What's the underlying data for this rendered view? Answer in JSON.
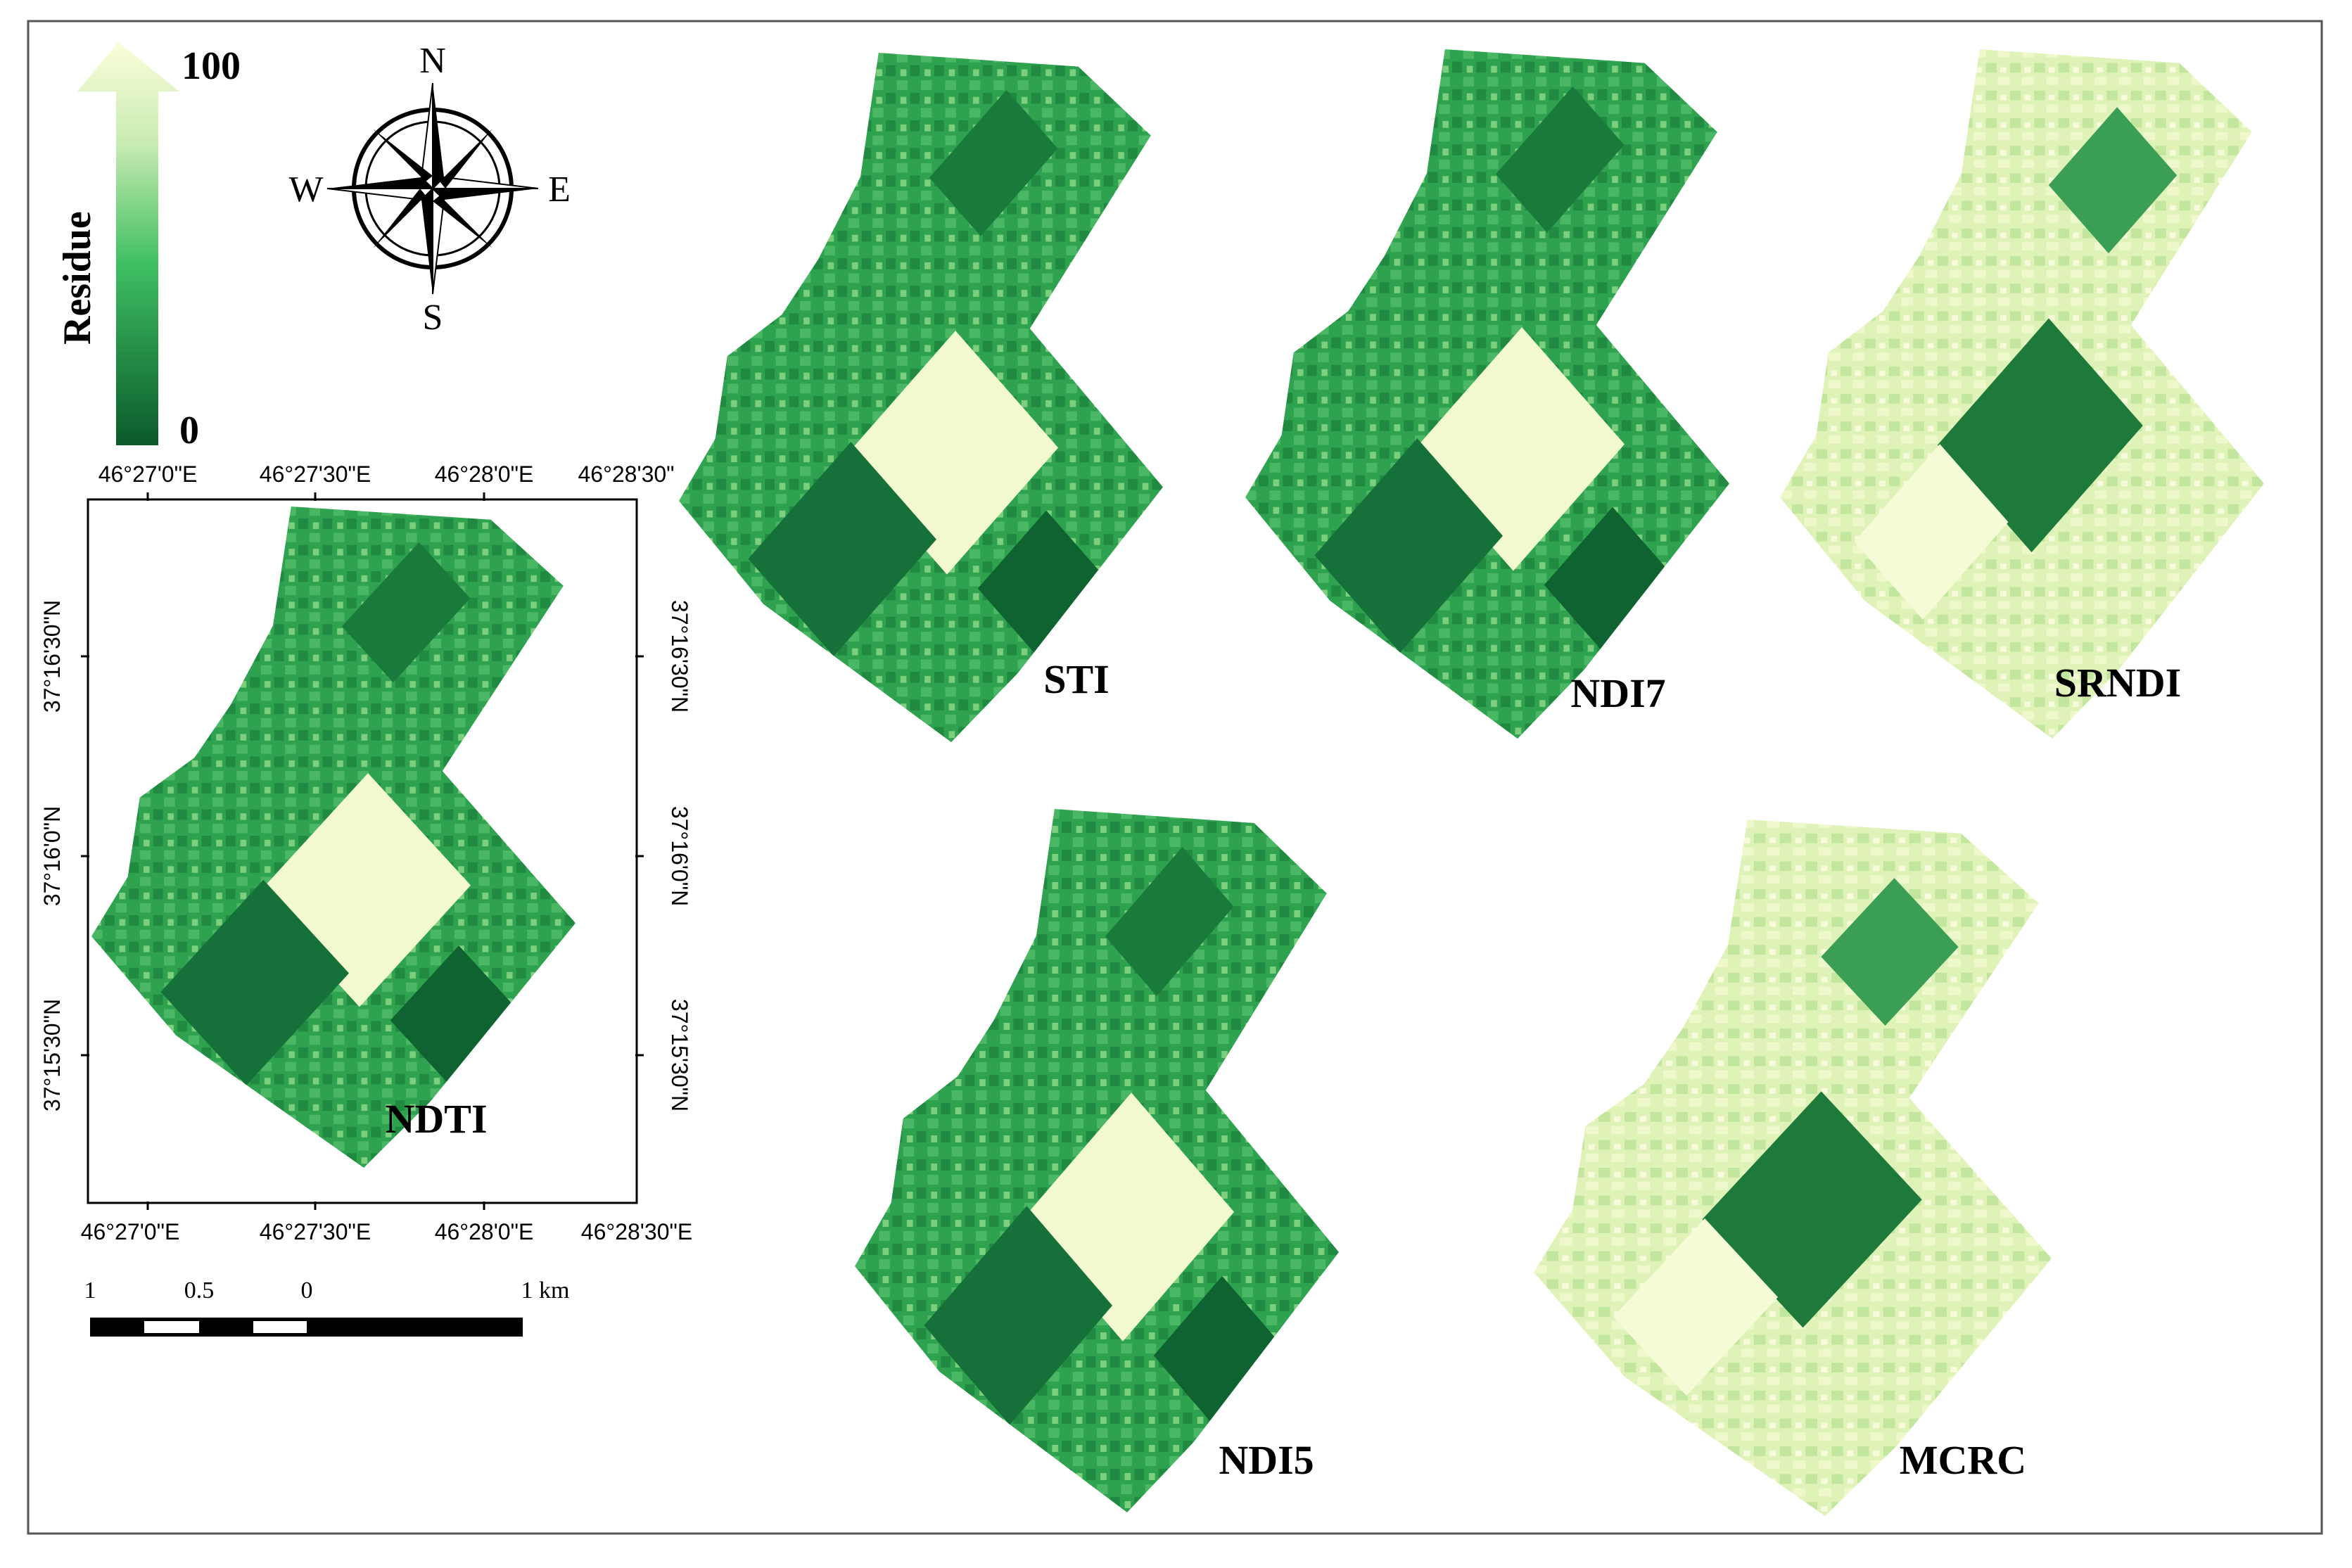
{
  "legend": {
    "title": "Residue",
    "max_label": "100",
    "min_label": "0",
    "colors": {
      "high": "#fbfdda",
      "mid": "#3fbf63",
      "low": "#0a5a2a"
    }
  },
  "compass": {
    "north": "N",
    "south": "S",
    "east": "E",
    "west": "W"
  },
  "graticule": {
    "top_labels": [
      "46°27'0\"E",
      "46°27'30\"E",
      "46°28'0\"E",
      "46°28'30\""
    ],
    "bottom_labels": [
      "46°27'0\"E",
      "46°27'30\"E",
      "46°28'0\"E",
      "46°28'30\"E"
    ],
    "left_labels": [
      "37°16'30\"N",
      "37°16'0\"N",
      "37°15'30\"N"
    ],
    "right_labels": [
      "37°16'30\"N",
      "37°16'0\"N",
      "37°15'30\"N"
    ]
  },
  "scale_bar": {
    "labels": [
      "1",
      "0.5",
      "0",
      "1 km"
    ]
  },
  "maps": [
    {
      "label": "NDTI",
      "tone": "green"
    },
    {
      "label": "STI",
      "tone": "green"
    },
    {
      "label": "NDI7",
      "tone": "green"
    },
    {
      "label": "SRNDI",
      "tone": "light"
    },
    {
      "label": "NDI5",
      "tone": "green"
    },
    {
      "label": "MCRC",
      "tone": "light"
    }
  ]
}
